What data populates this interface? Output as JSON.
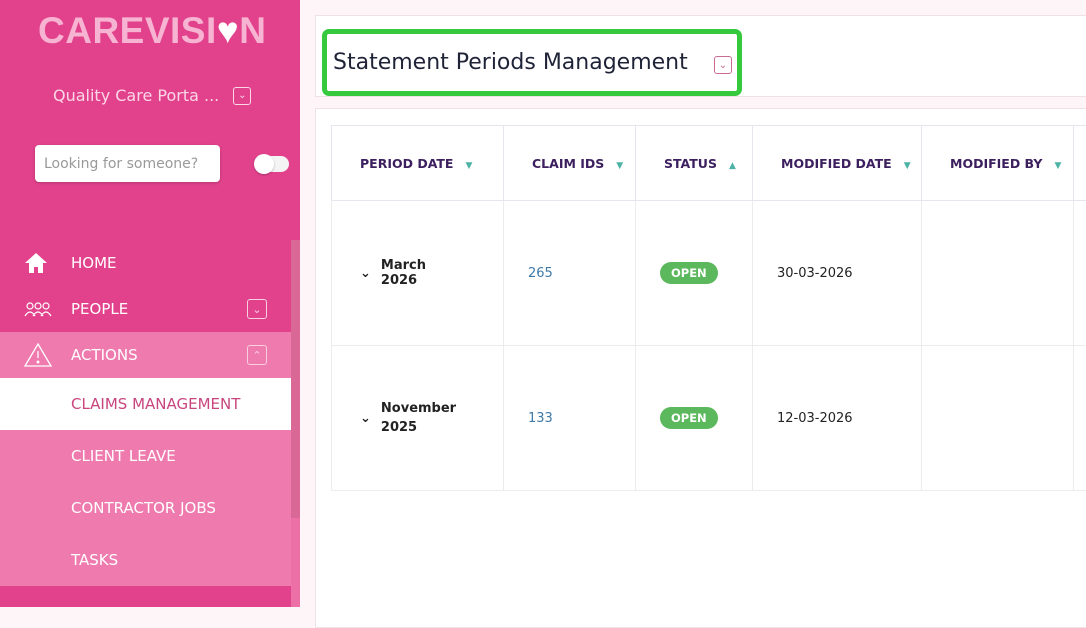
{
  "sidebar": {
    "logo": "CAREVISION",
    "org": "Quality Care Porta ...",
    "search_placeholder": "Looking for someone?",
    "items": [
      {
        "label": "HOME",
        "icon": "home-icon"
      },
      {
        "label": "PEOPLE",
        "icon": "people-icon"
      },
      {
        "label": "ACTIONS",
        "icon": "warning-icon"
      }
    ],
    "subitems": [
      "CLAIMS MANAGEMENT",
      "CLIENT LEAVE",
      "CONTRACTOR JOBS",
      "TASKS"
    ],
    "active": "CLAIMS MANAGEMENT"
  },
  "header": {
    "title": "Statement Periods Management"
  },
  "table": {
    "columns": [
      {
        "label": "PERIOD DATE",
        "sort": "down"
      },
      {
        "label": "CLAIM IDS",
        "sort": "down"
      },
      {
        "label": "STATUS",
        "sort": "up"
      },
      {
        "label": "MODIFIED DATE",
        "sort": "down"
      },
      {
        "label": "MODIFIED BY",
        "sort": "down"
      }
    ],
    "rows": [
      {
        "period": "March 2026",
        "claims": "265",
        "status": "OPEN",
        "modified": "30-03-2026",
        "by": ""
      },
      {
        "period": "November 2025",
        "claims": "133",
        "status": "OPEN",
        "modified": "12-03-2026",
        "by": ""
      }
    ]
  },
  "colors": {
    "sidebar": "#e2428c",
    "sidebar_light": "#ee7aae",
    "highlight": "#36c93d",
    "status_open": "#5cb85c"
  }
}
